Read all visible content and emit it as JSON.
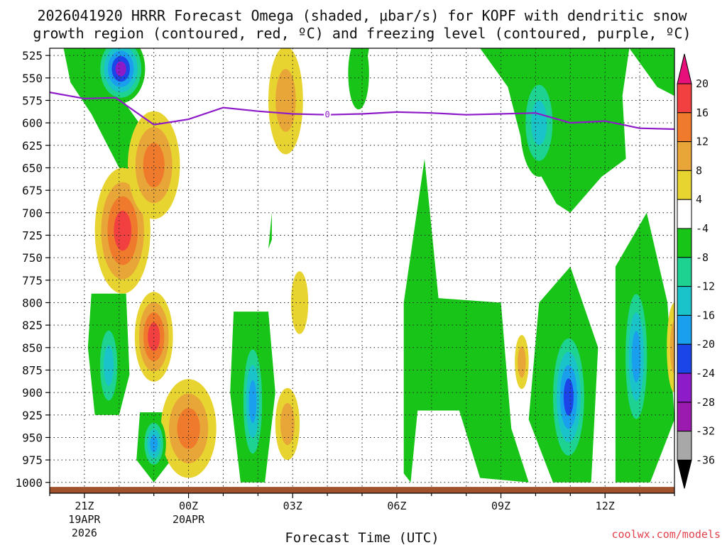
{
  "chart_data": {
    "type": "heatmap",
    "title_line1": "2026041920 HRRR Forecast Omega (shaded, μbar/s) for KOPF with dendritic snow",
    "title_line2": "growth region (contoured, red, ºC) and freezing level (contoured, purple, ºC)",
    "xlabel": "Forecast Time (UTC)",
    "ylabel": "",
    "x_range_hours_after_20Z": [
      0,
      18
    ],
    "x_ticks": [
      {
        "hour": 1,
        "label": "21Z",
        "sub1": "19APR",
        "sub2": "2026"
      },
      {
        "hour": 4,
        "label": "00Z",
        "sub1": "20APR",
        "sub2": ""
      },
      {
        "hour": 7,
        "label": "03Z",
        "sub1": "",
        "sub2": ""
      },
      {
        "hour": 10,
        "label": "06Z",
        "sub1": "",
        "sub2": ""
      },
      {
        "hour": 13,
        "label": "09Z",
        "sub1": "",
        "sub2": ""
      },
      {
        "hour": 16,
        "label": "12Z",
        "sub1": "",
        "sub2": ""
      }
    ],
    "y_range_mb": [
      1012,
      517
    ],
    "y_ticks": [
      525,
      550,
      575,
      600,
      625,
      650,
      675,
      700,
      725,
      750,
      775,
      800,
      825,
      850,
      875,
      900,
      925,
      950,
      975,
      1000
    ],
    "grid": true,
    "colorbar": {
      "labels": [
        "20",
        "16",
        "12",
        "8",
        "4",
        "-4",
        "-8",
        "-12",
        "-16",
        "-20",
        "-24",
        "-28",
        "-32",
        "-36"
      ],
      "colors": [
        "#e8117c",
        "#f24040",
        "#f07a2c",
        "#e8a538",
        "#e8d430",
        "#ffffff",
        "#17c417",
        "#1ed292",
        "#1ac3c9",
        "#1a9fee",
        "#1b45e8",
        "#8e1bc8",
        "#9b1ab0",
        "#a8a8a8",
        "#000000"
      ]
    },
    "blobs": [
      {
        "x": 2.05,
        "p": 540,
        "rx": 0.7,
        "rp": 38,
        "v": -26
      },
      {
        "x": 2.1,
        "p": 720,
        "rx": 0.8,
        "rp": 70,
        "v": 16
      },
      {
        "x": 3.0,
        "p": 647,
        "rx": 0.75,
        "rp": 60,
        "v": 14
      },
      {
        "x": 3.0,
        "p": 838,
        "rx": 0.55,
        "rp": 50,
        "v": 18
      },
      {
        "x": 4.0,
        "p": 940,
        "rx": 0.8,
        "rp": 55,
        "v": 15
      },
      {
        "x": 1.7,
        "p": 870,
        "rx": 0.35,
        "rp": 55,
        "v": -14
      },
      {
        "x": 3.0,
        "p": 957,
        "rx": 0.35,
        "rp": 30,
        "v": -16
      },
      {
        "x": 5.85,
        "p": 910,
        "rx": 0.35,
        "rp": 75,
        "v": -18
      },
      {
        "x": 6.8,
        "p": 575,
        "rx": 0.5,
        "rp": 60,
        "v": 11
      },
      {
        "x": 6.85,
        "p": 935,
        "rx": 0.35,
        "rp": 40,
        "v": 10
      },
      {
        "x": 7.2,
        "p": 800,
        "rx": 0.25,
        "rp": 35,
        "v": 6
      },
      {
        "x": 12.0,
        "p": 852,
        "rx": 0.45,
        "rp": 45,
        "v": -6
      },
      {
        "x": 14.1,
        "p": 600,
        "rx": 0.55,
        "rp": 60,
        "v": -13
      },
      {
        "x": 14.95,
        "p": 905,
        "rx": 0.55,
        "rp": 80,
        "v": -22
      },
      {
        "x": 16.9,
        "p": 860,
        "rx": 0.4,
        "rp": 90,
        "v": -16
      },
      {
        "x": 13.6,
        "p": 866,
        "rx": 0.2,
        "rp": 30,
        "v": 9
      },
      {
        "x": 18.0,
        "p": 850,
        "rx": 0.22,
        "rp": 50,
        "v": 10
      },
      {
        "x": 8.9,
        "p": 545,
        "rx": 0.3,
        "rp": 40,
        "v": -6
      }
    ],
    "green_regions": [
      [
        [
          0.4,
          517
        ],
        [
          1.8,
          517
        ],
        [
          1.9,
          555
        ],
        [
          2.2,
          580
        ],
        [
          2.8,
          612
        ],
        [
          2.4,
          640
        ],
        [
          2.4,
          700
        ],
        [
          2.0,
          650
        ],
        [
          1.2,
          590
        ],
        [
          0.6,
          555
        ]
      ],
      [
        [
          1.2,
          790
        ],
        [
          2.2,
          790
        ],
        [
          2.3,
          880
        ],
        [
          2.0,
          925
        ],
        [
          1.3,
          925
        ],
        [
          1.1,
          850
        ]
      ],
      [
        [
          2.6,
          922
        ],
        [
          3.4,
          922
        ],
        [
          3.5,
          975
        ],
        [
          3.0,
          1000
        ],
        [
          2.5,
          975
        ]
      ],
      [
        [
          5.3,
          810
        ],
        [
          6.3,
          810
        ],
        [
          6.5,
          900
        ],
        [
          6.2,
          1000
        ],
        [
          5.5,
          1000
        ],
        [
          5.2,
          900
        ]
      ],
      [
        [
          6.3,
          740
        ],
        [
          6.4,
          700
        ],
        [
          6.4,
          730
        ]
      ],
      [
        [
          10.2,
          800
        ],
        [
          10.8,
          640
        ],
        [
          11.2,
          795
        ],
        [
          13.0,
          800
        ],
        [
          13.3,
          940
        ],
        [
          13.8,
          1000
        ],
        [
          12.4,
          995
        ],
        [
          11.8,
          920
        ],
        [
          10.6,
          920
        ],
        [
          10.4,
          1000
        ],
        [
          10.2,
          990
        ]
      ],
      [
        [
          12.4,
          517
        ],
        [
          18.0,
          517
        ],
        [
          18.0,
          570
        ],
        [
          17.5,
          560
        ],
        [
          16.7,
          517
        ],
        [
          16.5,
          570
        ],
        [
          16.6,
          640
        ],
        [
          15.9,
          660
        ],
        [
          15.0,
          700
        ],
        [
          14.6,
          690
        ],
        [
          13.6,
          620
        ],
        [
          13.2,
          560
        ]
      ],
      [
        [
          8.7,
          517
        ],
        [
          9.2,
          517
        ],
        [
          9.0,
          565
        ],
        [
          8.8,
          550
        ]
      ],
      [
        [
          14.1,
          800
        ],
        [
          15.0,
          760
        ],
        [
          15.8,
          850
        ],
        [
          15.6,
          1000
        ],
        [
          14.5,
          1000
        ],
        [
          13.8,
          930
        ]
      ],
      [
        [
          16.3,
          760
        ],
        [
          17.2,
          700
        ],
        [
          17.8,
          800
        ],
        [
          18.0,
          930
        ],
        [
          17.3,
          1000
        ],
        [
          16.3,
          1000
        ]
      ],
      [
        [
          17.6,
          517
        ],
        [
          18.0,
          517
        ],
        [
          18.0,
          560
        ],
        [
          17.9,
          560
        ]
      ]
    ],
    "freezing_level": {
      "label": "0",
      "x": [
        0,
        1,
        1.9,
        2.3,
        3.0,
        4.0,
        5.0,
        6.0,
        7.0,
        8.0,
        9.0,
        10.0,
        11.0,
        12.0,
        13.0,
        14.0,
        15.0,
        16.0,
        17.0,
        18.0
      ],
      "pressure": [
        566,
        573,
        572,
        583,
        602,
        596,
        583,
        587,
        590,
        591,
        590,
        588,
        589,
        591,
        590,
        589,
        600,
        598,
        606,
        607
      ]
    },
    "ground": {
      "surface_mb": 1005
    }
  },
  "colors": {
    "ground": "#a0522d",
    "freezing_level": "#8e1bc8",
    "grid": "#222222"
  },
  "credit": "coolwx.com/models"
}
